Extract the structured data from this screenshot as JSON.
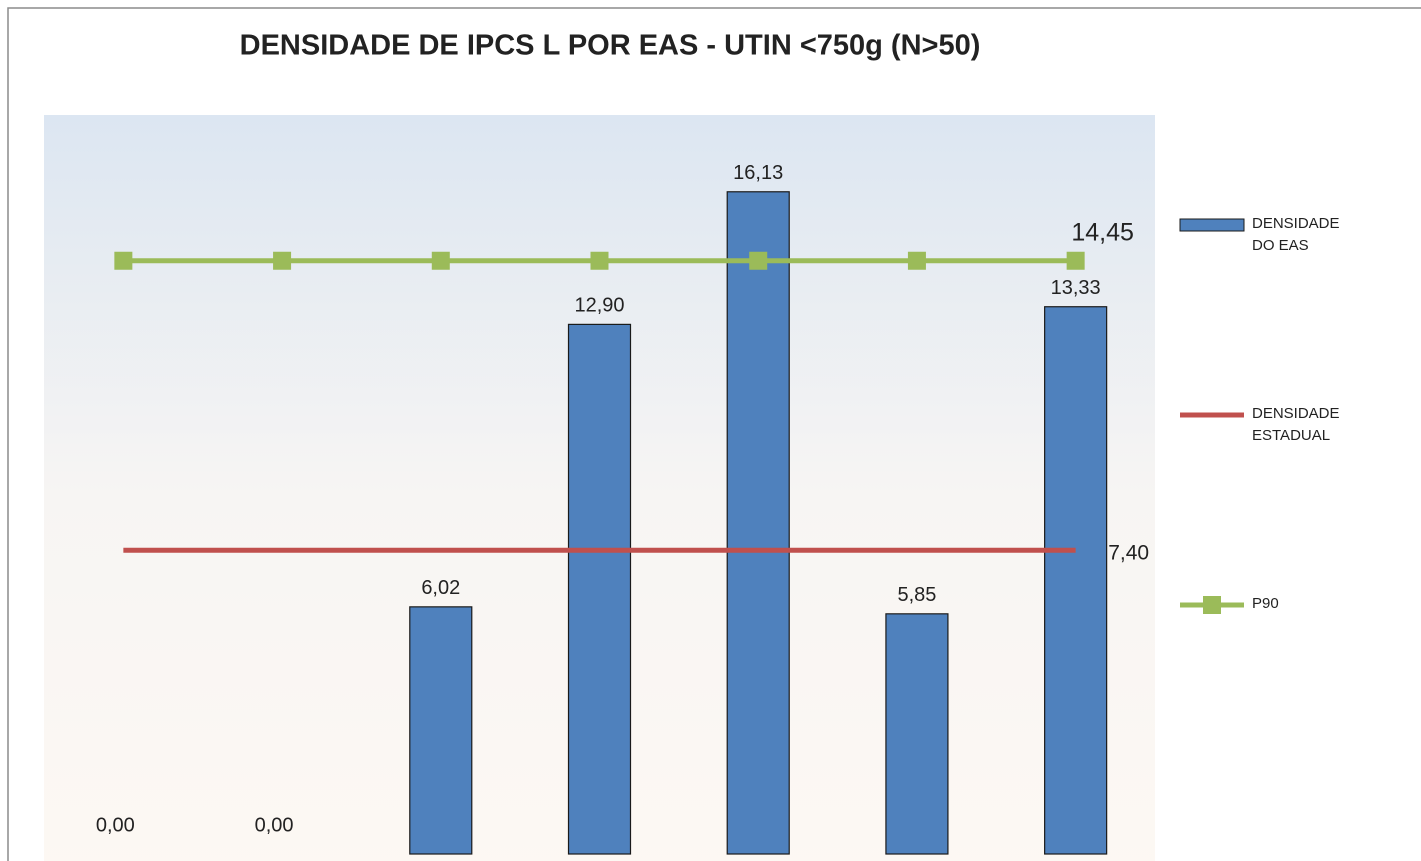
{
  "chart_data": {
    "type": "bar",
    "title": "DENSIDADE DE IPCS L  POR EAS - UTIN <750g (N>50)",
    "categories": [
      null,
      null,
      null,
      null,
      null,
      null,
      null
    ],
    "series": [
      {
        "name": "DENSIDADE DO EAS",
        "type": "bar",
        "color": "#4f81bd",
        "values": [
          0,
          0,
          6.02,
          12.9,
          16.13,
          5.85,
          13.33
        ],
        "value_labels": [
          "0,00",
          "0,00",
          "6,02",
          "12,90",
          "16,13",
          "5,85",
          "13,33"
        ]
      },
      {
        "name": "DENSIDADE ESTADUAL",
        "type": "line",
        "color": "#c0504d",
        "markers": false,
        "values": [
          7.4,
          7.4,
          7.4,
          7.4,
          7.4,
          7.4,
          7.4
        ],
        "value_labels": [
          null,
          null,
          null,
          null,
          null,
          null,
          "7,40"
        ]
      },
      {
        "name": "p90",
        "type": "line",
        "color": "#9bbb59",
        "markers": true,
        "values": [
          14.45,
          14.45,
          14.45,
          14.45,
          14.45,
          14.45,
          14.45
        ],
        "value_labels": [
          null,
          null,
          null,
          null,
          null,
          null,
          "14,45"
        ]
      }
    ],
    "ylim": [
      0,
      18
    ],
    "legend": "right"
  }
}
